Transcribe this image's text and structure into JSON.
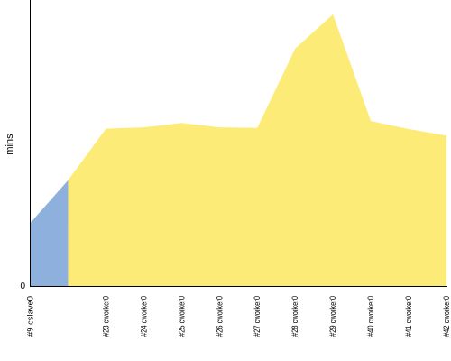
{
  "chart_data": {
    "type": "area",
    "ylabel": "mins",
    "y_tick_labels": [
      "0"
    ],
    "grid": false,
    "legend": "none",
    "colors": {
      "slave": "#8eb0dd",
      "worker": "#fdeb77",
      "axis": "#000000"
    },
    "categories": [
      "#9 cslave0",
      "",
      "#23 cworker0",
      "#24 cworker0",
      "#25 cworker0",
      "#26 cworker0",
      "#27 cworker0",
      "#28 cworker0",
      "#29 cworker0",
      "#40 cworker0",
      "#41 cworker0",
      "#42 cworker0"
    ],
    "x_tick_labels": [
      "#9 cslave0",
      "#23 cworker0",
      "#24 cworker0",
      "#25 cworker0",
      "#26 cworker0",
      "#27 cworker0",
      "#28 cworker0",
      "#29 cworker0",
      "#40 cworker0",
      "#41 cworker0",
      "#42 cworker0"
    ],
    "ylim": [
      0,
      100
    ],
    "series": [
      {
        "values": [
          22,
          37,
          null,
          null,
          null,
          null,
          null,
          null,
          null,
          null,
          null,
          null
        ]
      },
      {
        "values": [
          null,
          37,
          55,
          55.5,
          57,
          55.5,
          55.3,
          83,
          95,
          57.7,
          54.9,
          52.6
        ]
      }
    ]
  }
}
